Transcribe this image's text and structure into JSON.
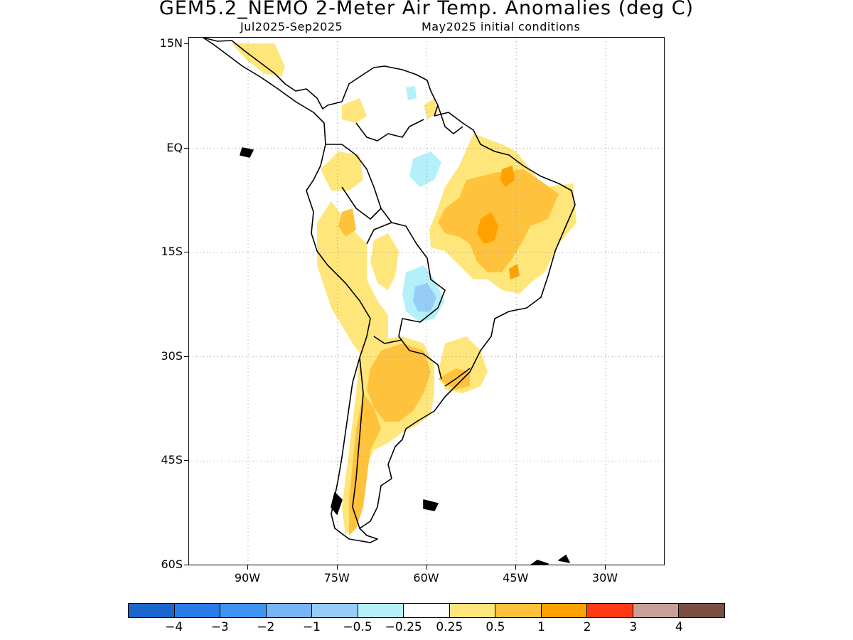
{
  "title": "GEM5.2_NEMO 2-Meter Air Temp. Anomalies (deg C)",
  "subtitle_period": "Jul2025-Sep2025",
  "subtitle_init": "May2025 initial conditions",
  "map": {
    "region": "South America",
    "projection": "lat-lon",
    "lon_range": [
      -102,
      -22
    ],
    "lat_range": [
      -60,
      16
    ],
    "lat_labels": [
      {
        "text": "15N",
        "lat": 15
      },
      {
        "text": "EQ",
        "lat": 0
      },
      {
        "text": "15S",
        "lat": -15
      },
      {
        "text": "30S",
        "lat": -30
      },
      {
        "text": "45S",
        "lat": -45
      },
      {
        "text": "60S",
        "lat": -60
      }
    ],
    "lon_labels": [
      {
        "text": "90W",
        "lon": -90
      },
      {
        "text": "75W",
        "lon": -75
      },
      {
        "text": "60W",
        "lon": -60
      },
      {
        "text": "45W",
        "lon": -45
      },
      {
        "text": "30W",
        "lon": -30
      }
    ],
    "grid": "dotted",
    "coastline_color": "#000000"
  },
  "colorbar": {
    "colors": [
      "#1a66cc",
      "#2a7ae8",
      "#3f94f2",
      "#78b5f5",
      "#96cdf8",
      "#b4f0fa",
      "#ffffff",
      "#ffe67a",
      "#ffc23d",
      "#ffa100",
      "#ff3a14",
      "#c8a098",
      "#7a4f42"
    ],
    "labels": [
      "-4",
      "-3",
      "-2",
      "-1",
      "-0.5",
      "-0.25",
      "0.25",
      "0.5",
      "1",
      "2",
      "3",
      "4"
    ]
  },
  "anomaly_regions": [
    {
      "level": "0.25-0.5",
      "color": "#ffe67a"
    },
    {
      "level": "0.5-1",
      "color": "#ffc23d"
    },
    {
      "level": "1-2",
      "color": "#ffa100"
    },
    {
      "level": "-0.5--0.25",
      "color": "#b4f0fa"
    },
    {
      "level": "-1--0.5",
      "color": "#96cdf8"
    }
  ]
}
